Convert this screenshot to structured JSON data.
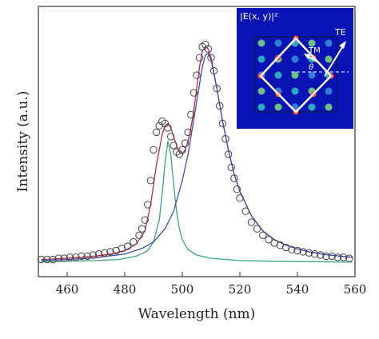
{
  "chart_data": {
    "type": "scatter",
    "xlabel": "Wavelength (nm)",
    "ylabel": "Intensity (a.u.)",
    "xlim": [
      450,
      560
    ],
    "ylim": [
      0,
      1.05
    ],
    "xticks": [
      460,
      480,
      500,
      520,
      540,
      560
    ],
    "yticks": [],
    "grid": false,
    "legend": "none",
    "series": [
      {
        "kind": "markers",
        "color": "#444444",
        "x": [
          451,
          453,
          455,
          457,
          459,
          461,
          463,
          465,
          467,
          469,
          471,
          473,
          475,
          477,
          479,
          481,
          483,
          485,
          486,
          487,
          488,
          489,
          490,
          491,
          492,
          493,
          494,
          495,
          496,
          497,
          498,
          499,
          500,
          501,
          502,
          503,
          504,
          505,
          506,
          507,
          508,
          509,
          510,
          511,
          512,
          513,
          514,
          515,
          516,
          517,
          518,
          519,
          520,
          522,
          524,
          526,
          528,
          530,
          532,
          534,
          536,
          538,
          540,
          542,
          544,
          546,
          548,
          550,
          552,
          554,
          556,
          558
        ],
        "y": [
          0.02,
          0.02,
          0.02,
          0.025,
          0.025,
          0.03,
          0.03,
          0.035,
          0.035,
          0.04,
          0.045,
          0.05,
          0.055,
          0.06,
          0.07,
          0.08,
          0.1,
          0.13,
          0.16,
          0.2,
          0.27,
          0.38,
          0.52,
          0.6,
          0.63,
          0.65,
          0.64,
          0.62,
          0.58,
          0.54,
          0.51,
          0.5,
          0.52,
          0.55,
          0.6,
          0.68,
          0.78,
          0.86,
          0.94,
          0.99,
          1.0,
          0.98,
          0.94,
          0.88,
          0.8,
          0.72,
          0.64,
          0.57,
          0.5,
          0.44,
          0.39,
          0.34,
          0.3,
          0.24,
          0.19,
          0.16,
          0.13,
          0.11,
          0.095,
          0.085,
          0.075,
          0.065,
          0.06,
          0.055,
          0.05,
          0.045,
          0.04,
          0.035,
          0.035,
          0.03,
          0.03,
          0.025
        ]
      },
      {
        "kind": "fit-total",
        "color": "#c8283c",
        "x": [
          451,
          455,
          460,
          465,
          470,
          475,
          480,
          484,
          487,
          489,
          491,
          493,
          494,
          495,
          496,
          497,
          498,
          499,
          500,
          501,
          502,
          503,
          504,
          505,
          506,
          507,
          508,
          509,
          510,
          512,
          514,
          516,
          518,
          520,
          524,
          528,
          532,
          536,
          540,
          545,
          550,
          555,
          559
        ],
        "y": [
          0.02,
          0.022,
          0.026,
          0.03,
          0.036,
          0.045,
          0.06,
          0.09,
          0.15,
          0.27,
          0.45,
          0.59,
          0.63,
          0.64,
          0.62,
          0.58,
          0.54,
          0.51,
          0.5,
          0.52,
          0.56,
          0.62,
          0.7,
          0.8,
          0.9,
          0.97,
          0.99,
          0.98,
          0.94,
          0.8,
          0.65,
          0.52,
          0.41,
          0.33,
          0.22,
          0.15,
          0.11,
          0.085,
          0.068,
          0.052,
          0.042,
          0.035,
          0.03
        ]
      },
      {
        "kind": "fit-peak-1",
        "color": "#3aa38a",
        "x": [
          451,
          460,
          470,
          478,
          484,
          488,
          490,
          492,
          493,
          494,
          495,
          496,
          497,
          498,
          499,
          500,
          502,
          505,
          510,
          520,
          530,
          545,
          559
        ],
        "y": [
          0.01,
          0.012,
          0.015,
          0.02,
          0.035,
          0.06,
          0.1,
          0.2,
          0.32,
          0.46,
          0.56,
          0.5,
          0.36,
          0.24,
          0.16,
          0.11,
          0.065,
          0.04,
          0.025,
          0.015,
          0.012,
          0.01,
          0.008
        ]
      },
      {
        "kind": "fit-peak-2",
        "color": "#3d4fb0",
        "x": [
          451,
          460,
          470,
          480,
          486,
          490,
          494,
          497,
          500,
          502,
          504,
          506,
          507,
          508,
          509,
          510,
          512,
          514,
          516,
          518,
          520,
          524,
          528,
          532,
          536,
          540,
          545,
          550,
          555,
          559
        ],
        "y": [
          0.015,
          0.02,
          0.028,
          0.045,
          0.07,
          0.1,
          0.16,
          0.24,
          0.38,
          0.5,
          0.66,
          0.82,
          0.9,
          0.95,
          0.96,
          0.93,
          0.8,
          0.65,
          0.52,
          0.41,
          0.33,
          0.22,
          0.15,
          0.11,
          0.085,
          0.068,
          0.052,
          0.042,
          0.035,
          0.03
        ]
      }
    ],
    "inset": {
      "title": "|E(x, y)|²",
      "labels": [
        "TE",
        "TM",
        "θ"
      ]
    }
  }
}
